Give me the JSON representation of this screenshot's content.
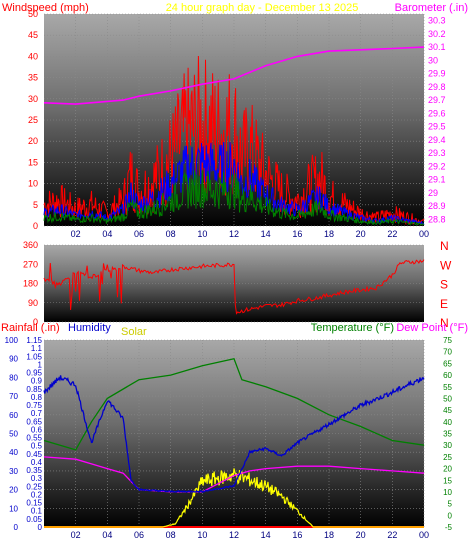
{
  "header": {
    "windspeed_label": "Windspeed (mph)",
    "title": "24 hour graph day - December 13 2025",
    "barometer_label": "Barometer (.in)"
  },
  "lower_header": {
    "rainfall_label": "Rainfall (.in)",
    "humidity_label": "Humidity",
    "solar_label": "Solar",
    "temperature_label": "Temperature (°F)",
    "dewpoint_label": "Dew Point (°F)"
  },
  "colors": {
    "windspeed": "#ff0000",
    "wind_avg": "#0000ff",
    "wind_min": "#008000",
    "barometer": "#ff00ff",
    "direction": "#ff0000",
    "rainfall": "#ff0000",
    "humidity": "#0000cc",
    "solar": "#ffff00",
    "temperature": "#008000",
    "dewpoint": "#ff00ff",
    "title": "#ffff00",
    "panel_top": "#a8a8a8",
    "panel_bottom": "#000000"
  },
  "chart_data": [
    {
      "id": "wind-barometer",
      "type": "line",
      "x_ticks": [
        "02",
        "04",
        "06",
        "08",
        "10",
        "12",
        "14",
        "16",
        "18",
        "20",
        "22",
        "00"
      ],
      "x_range": [
        0,
        24
      ],
      "y_left_ticks": [
        "0",
        "5",
        "10",
        "15",
        "20",
        "25",
        "30",
        "35",
        "40",
        "45",
        "50"
      ],
      "y_left_range": [
        0,
        50
      ],
      "y_right_ticks": [
        "28.8",
        "28.9",
        "29",
        "29.1",
        "29.2",
        "29.3",
        "29.4",
        "29.5",
        "29.6",
        "29.7",
        "29.8",
        "29.9",
        "30",
        "30.1",
        "30.2",
        "30.3"
      ],
      "y_right_range": [
        28.75,
        30.35
      ],
      "series": [
        {
          "name": "Windspeed (mph)",
          "axis": "left",
          "x": [
            0,
            1,
            2,
            3,
            4,
            5,
            5.5,
            6,
            7,
            8,
            9,
            10,
            11,
            12,
            12.5,
            13,
            14,
            15,
            16,
            17,
            17.5,
            18,
            19,
            20,
            21,
            22,
            23,
            24
          ],
          "values": [
            5,
            6,
            4,
            5,
            3,
            6,
            12,
            8,
            11,
            16,
            22,
            24,
            22,
            23,
            16,
            18,
            12,
            8,
            6,
            10,
            11,
            7,
            5,
            3,
            2,
            3,
            2,
            1
          ]
        },
        {
          "name": "Barometer (.in)",
          "axis": "right",
          "x": [
            0,
            2,
            4,
            5,
            6,
            8,
            10,
            12,
            14,
            16,
            18,
            20,
            22,
            24
          ],
          "values": [
            29.68,
            29.67,
            29.69,
            29.7,
            29.73,
            29.77,
            29.82,
            29.86,
            29.96,
            30.03,
            30.07,
            30.08,
            30.09,
            30.1
          ]
        }
      ]
    },
    {
      "id": "wind-direction",
      "type": "line",
      "x_range": [
        0,
        24
      ],
      "y_left_ticks": [
        "0",
        "90",
        "180",
        "270",
        "360"
      ],
      "y_left_range": [
        0,
        360
      ],
      "y_right_ticks": [
        "N",
        "W",
        "S",
        "E",
        "N"
      ],
      "series": [
        {
          "name": "Wind direction",
          "x": [
            0,
            1,
            2,
            3,
            4,
            5,
            6,
            7,
            8,
            10,
            12,
            12.1,
            13,
            14,
            15,
            16,
            17,
            18,
            19,
            20,
            21,
            22,
            22.5,
            23,
            24
          ],
          "values": [
            200,
            180,
            230,
            210,
            240,
            260,
            240,
            230,
            245,
            260,
            270,
            45,
            60,
            75,
            80,
            100,
            110,
            125,
            140,
            150,
            160,
            220,
            275,
            280,
            285
          ]
        }
      ]
    },
    {
      "id": "temp-humidity",
      "type": "line",
      "x_ticks": [
        "02",
        "04",
        "06",
        "08",
        "10",
        "12",
        "14",
        "16",
        "18",
        "20",
        "22",
        "00"
      ],
      "x_range": [
        0,
        24
      ],
      "y_humidity_ticks": [
        "0",
        "10",
        "20",
        "30",
        "40",
        "50",
        "60",
        "70",
        "80",
        "90",
        "100"
      ],
      "y_rain_ticks": [
        "0",
        "0.05",
        "0.1",
        "0.15",
        "0.2",
        "0.25",
        "0.3",
        "0.35",
        "0.4",
        "0.45",
        "0.5",
        "0.55",
        "0.6",
        "0.65",
        "0.7",
        "0.75",
        "0.8",
        "0.85",
        "0.9",
        "0.95",
        "1",
        "1.05",
        "1.1",
        "1.15"
      ],
      "y_rain_range": [
        0,
        1.15
      ],
      "y_temp_ticks": [
        "-5",
        "0",
        "5",
        "10",
        "15",
        "20",
        "25",
        "30",
        "35",
        "40",
        "45",
        "50",
        "55",
        "60",
        "65",
        "70",
        "75"
      ],
      "y_temp_range": [
        -5,
        75
      ],
      "series": [
        {
          "name": "Humidity",
          "axis": "humidity",
          "x": [
            0,
            1,
            2,
            2.5,
            3,
            4,
            5,
            5.5,
            6,
            8,
            10,
            12,
            13,
            14,
            15,
            16,
            18,
            20,
            22,
            24
          ],
          "values": [
            72,
            80,
            76,
            60,
            45,
            68,
            58,
            25,
            20,
            19,
            19,
            22,
            40,
            42,
            38,
            45,
            55,
            65,
            72,
            80
          ]
        },
        {
          "name": "Temperature (°F)",
          "axis": "temp",
          "x": [
            0,
            2,
            3,
            4,
            6,
            8,
            10,
            12,
            12.5,
            14,
            16,
            18,
            20,
            22,
            24
          ],
          "values": [
            32,
            28,
            40,
            50,
            58,
            60,
            64,
            67,
            58,
            55,
            50,
            43,
            38,
            32,
            30
          ]
        },
        {
          "name": "Dew Point (°F)",
          "axis": "temp",
          "x": [
            0,
            2,
            3,
            4,
            5,
            6,
            8,
            10,
            12,
            13,
            14,
            16,
            18,
            20,
            22,
            24
          ],
          "values": [
            25,
            24,
            22,
            20,
            18,
            11,
            10,
            10,
            17,
            19,
            20,
            21,
            21,
            20,
            19,
            18
          ]
        },
        {
          "name": "Solar",
          "axis": "rain",
          "x": [
            0,
            7.5,
            8.3,
            9,
            9.5,
            10,
            11,
            12,
            13,
            14,
            15,
            16,
            17,
            24
          ],
          "values": [
            0,
            0,
            0.02,
            0.12,
            0.2,
            0.28,
            0.3,
            0.32,
            0.29,
            0.25,
            0.19,
            0.1,
            0,
            0
          ]
        },
        {
          "name": "Rainfall (.in)",
          "axis": "rain",
          "x": [
            0,
            24
          ],
          "values": [
            0,
            0
          ]
        }
      ]
    }
  ]
}
